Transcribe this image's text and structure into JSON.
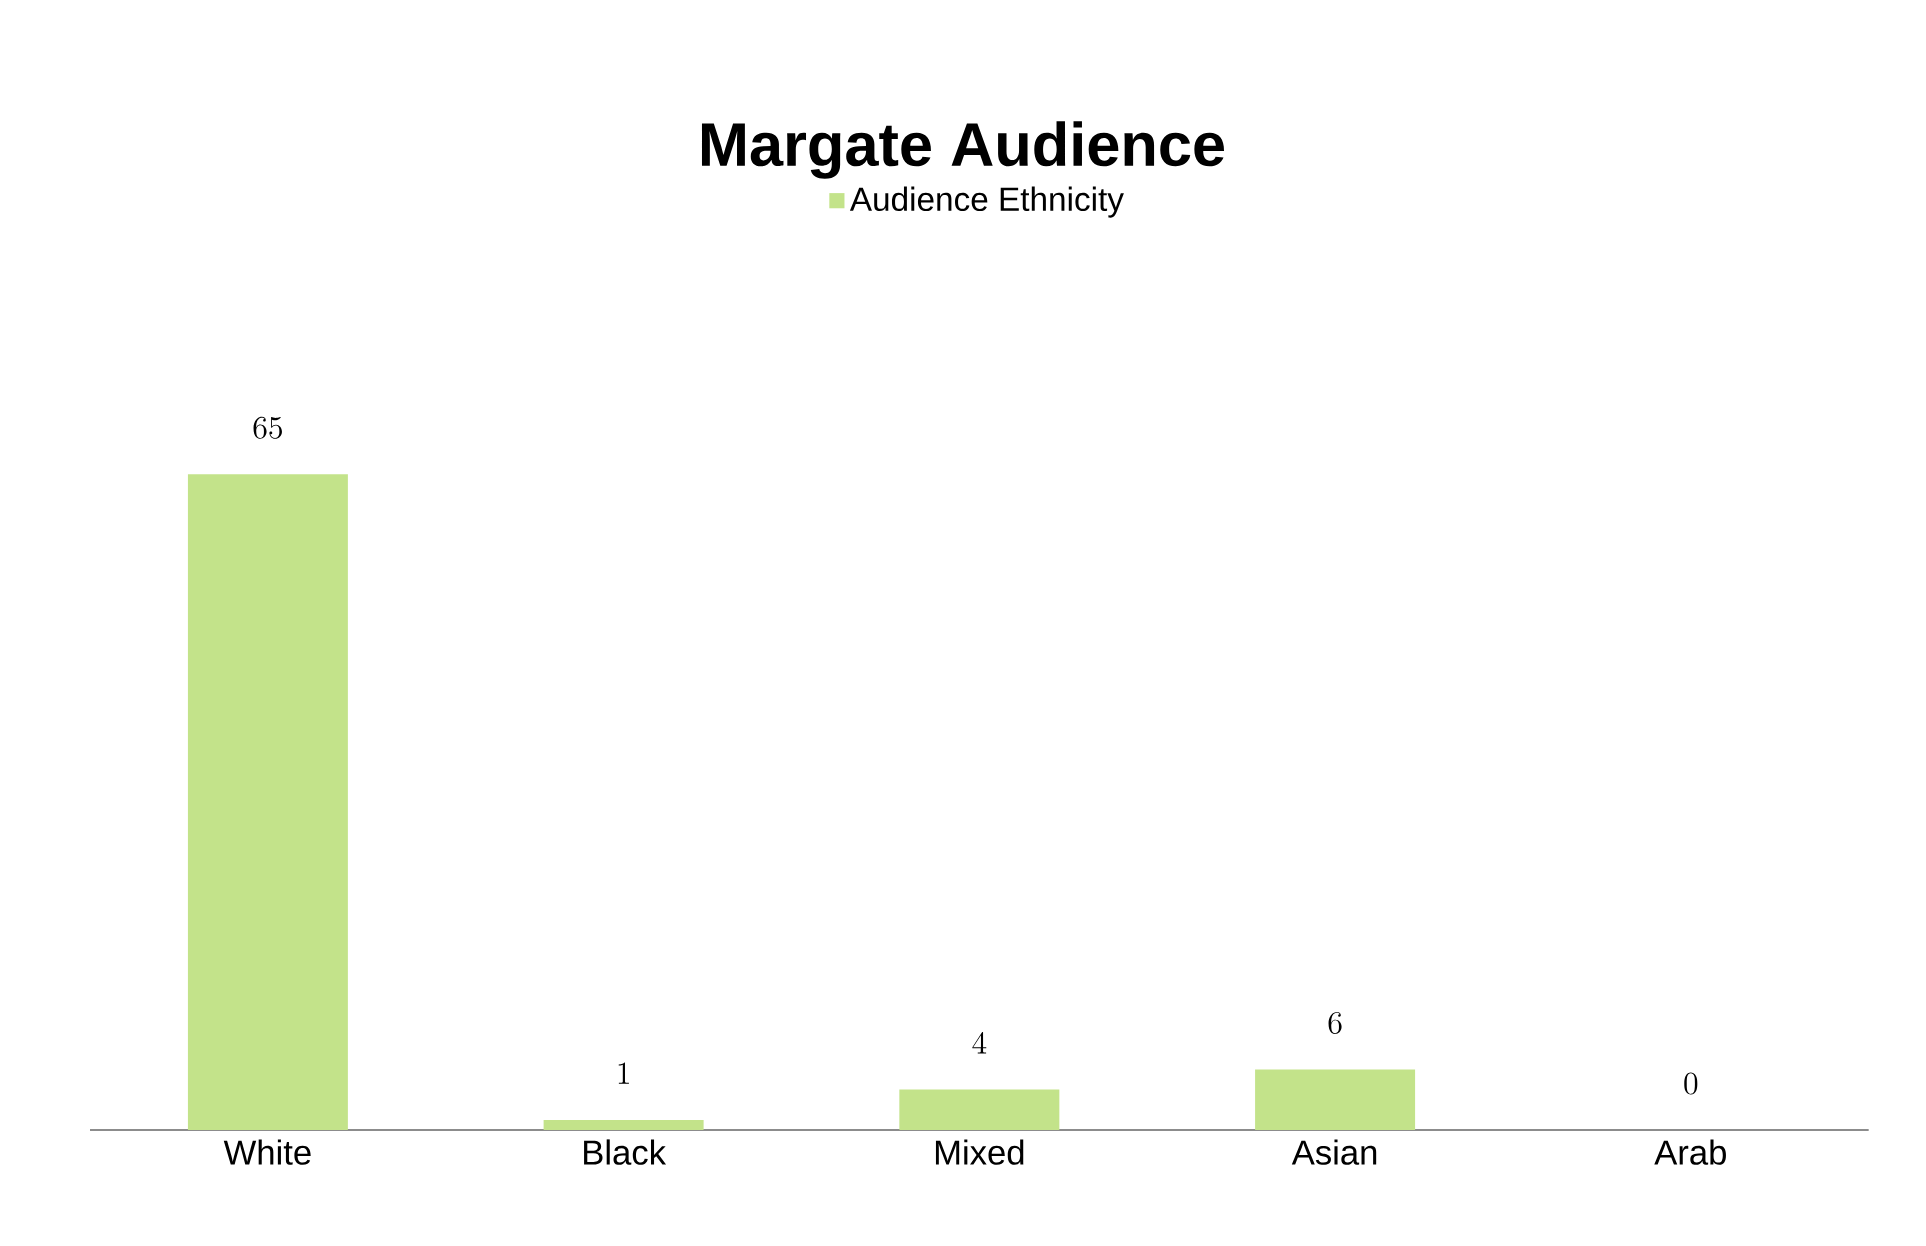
{
  "chart_data": {
    "type": "bar",
    "title": "Margate Audience",
    "categories": [
      "White",
      "Black",
      "Mixed",
      "Asian",
      "Arab"
    ],
    "series": [
      {
        "name": "Audience Ethnicity",
        "color": "#c3e38a",
        "values": [
          65,
          1,
          4,
          6,
          0
        ]
      }
    ],
    "data_labels": true,
    "legend": "top"
  }
}
